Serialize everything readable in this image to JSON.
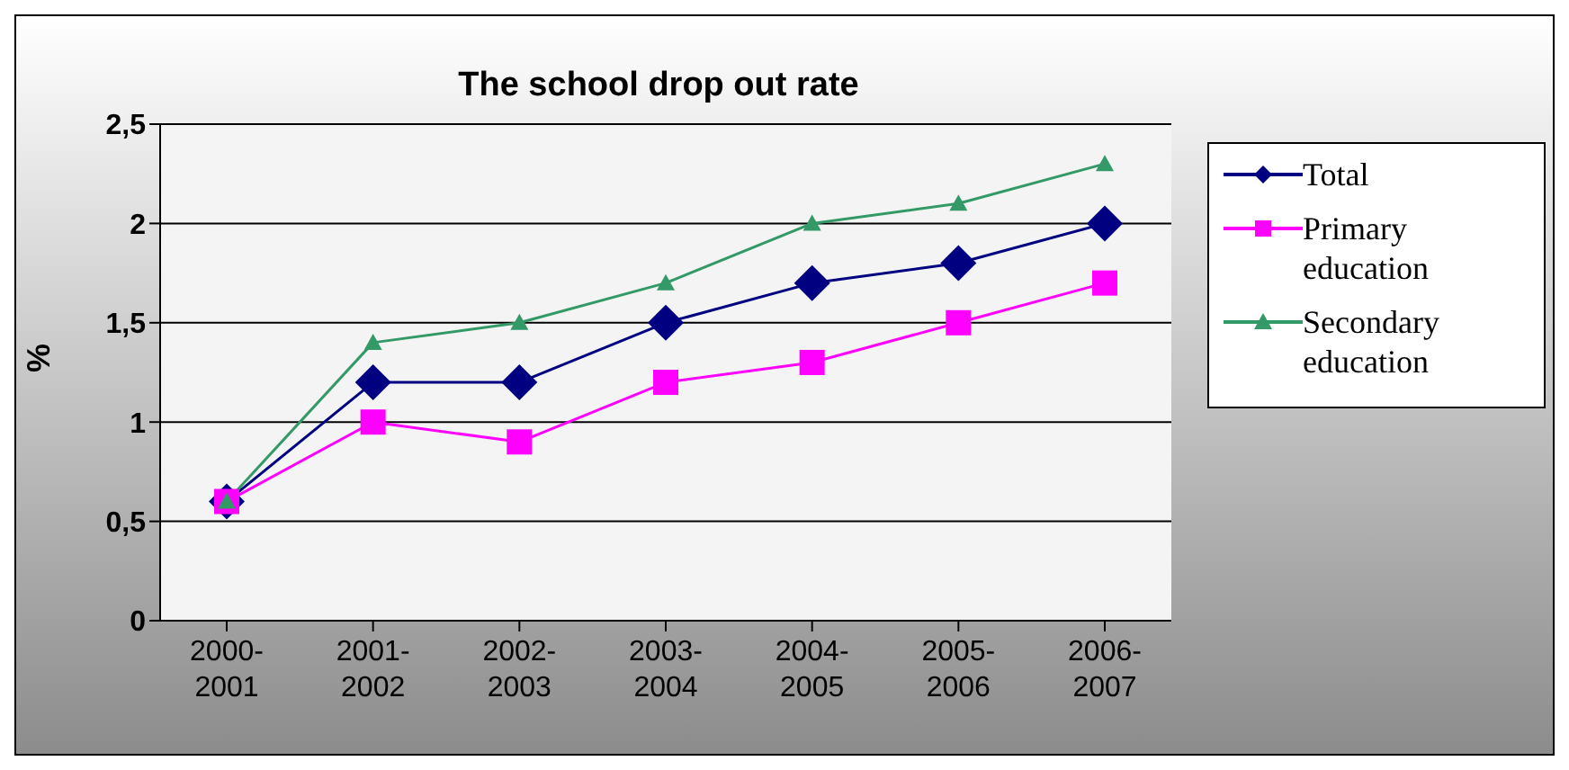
{
  "chart_data": {
    "type": "line",
    "title": "The school drop out rate",
    "ylabel": "%",
    "categories": [
      "2000-2001",
      "2001-2002",
      "2002-2003",
      "2003-2004",
      "2004-2005",
      "2005-2006",
      "2006-2007"
    ],
    "series": [
      {
        "name": "Total",
        "color": "#000080",
        "marker": "diamond",
        "values": [
          0.6,
          1.2,
          1.2,
          1.5,
          1.7,
          1.8,
          2.0
        ]
      },
      {
        "name": "Primary education",
        "color": "#ff00ff",
        "marker": "square",
        "values": [
          0.6,
          1.0,
          0.9,
          1.2,
          1.3,
          1.5,
          1.7
        ]
      },
      {
        "name": "Secondary education",
        "color": "#339966",
        "marker": "triangle",
        "values": [
          0.6,
          1.4,
          1.5,
          1.7,
          2.0,
          2.1,
          2.3
        ]
      }
    ],
    "ylim": [
      0,
      2.5
    ],
    "yticks": [
      0,
      {
        "value": 0.5,
        "label": "0,5"
      },
      1,
      {
        "value": 1.5,
        "label": "1,5"
      },
      2,
      {
        "value": 2.5,
        "label": "2,5"
      }
    ],
    "grid": "y",
    "legend": "right",
    "line_style": "solid"
  }
}
